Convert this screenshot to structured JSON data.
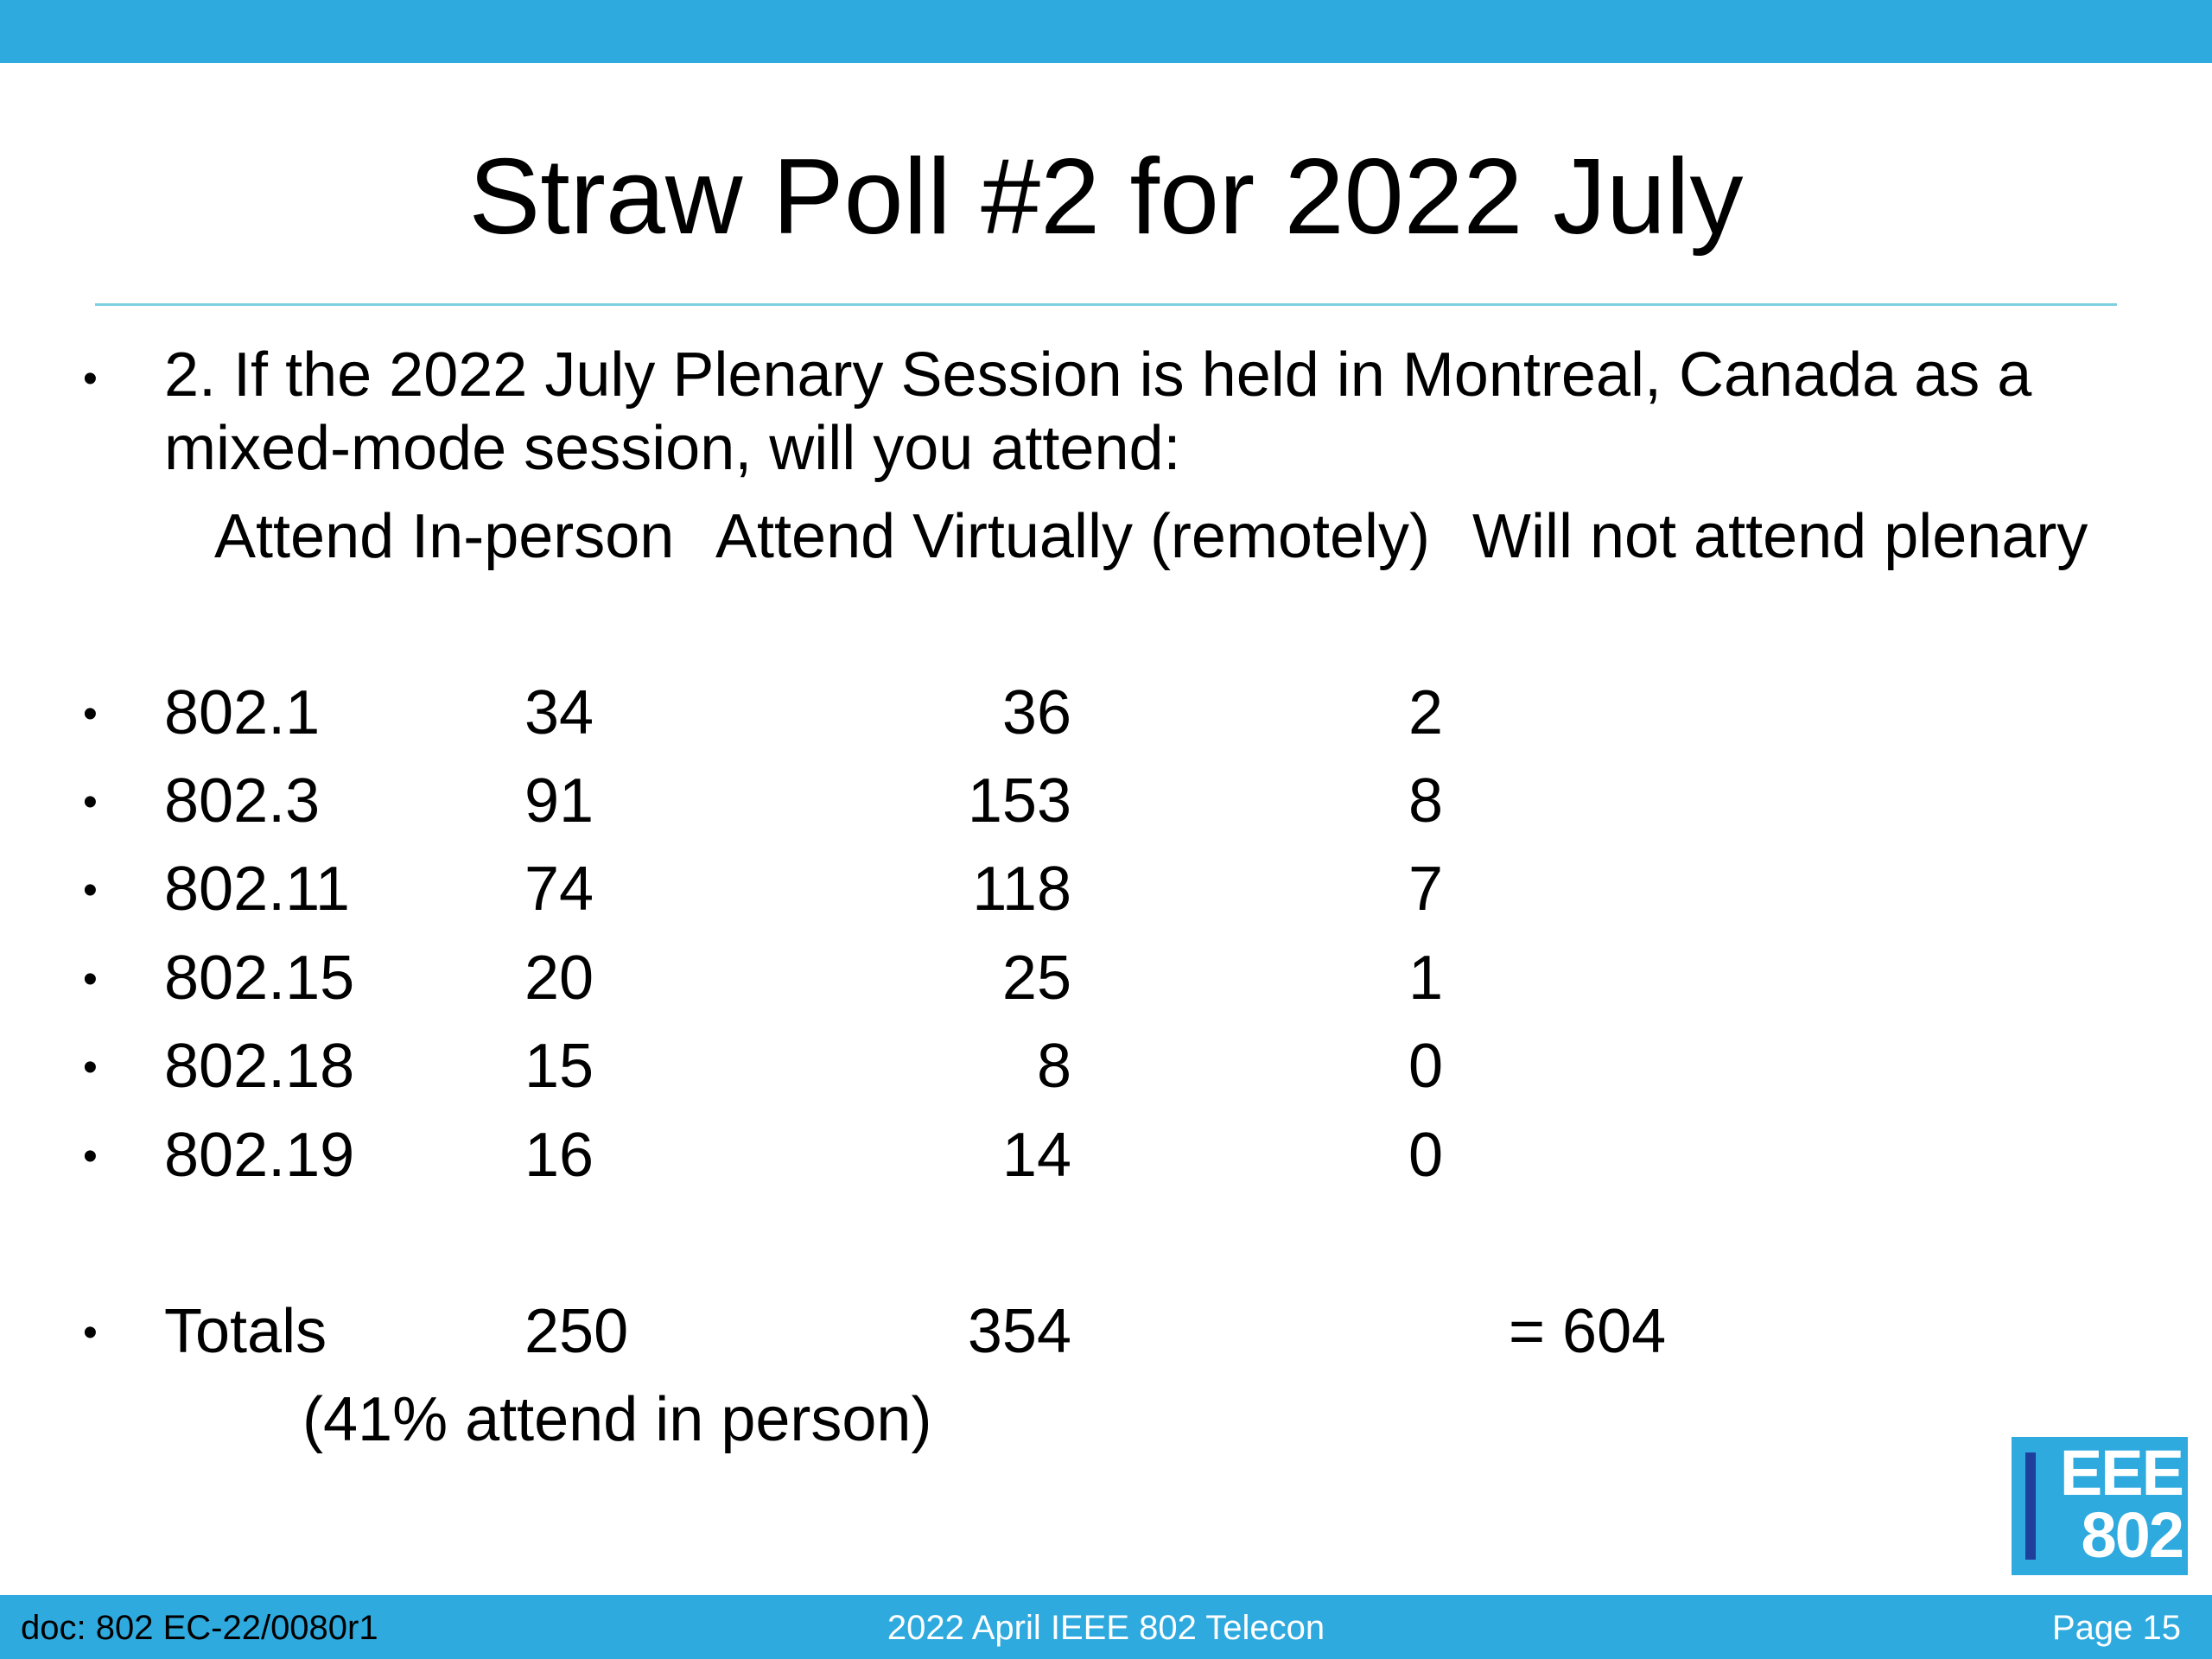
{
  "slide": {
    "title": "Straw Poll #2 for 2022 July",
    "question_line1": "2. If the 2022 July Plenary Session is held in Montreal, Canada as a",
    "question_line2": "mixed-mode session, will you attend:",
    "bullet_glyph": "•"
  },
  "table": {
    "headers": [
      "Attend In-person",
      "Attend Virtually (remotely)",
      "Will not attend plenary"
    ],
    "rows": [
      {
        "group": "802.1",
        "in_person": "34",
        "virtual": "36",
        "not_attend": "2"
      },
      {
        "group": "802.3",
        "in_person": "91",
        "virtual": "153",
        "not_attend": "8"
      },
      {
        "group": "802.11",
        "in_person": "74",
        "virtual": "118",
        "not_attend": "7"
      },
      {
        "group": "802.15",
        "in_person": "20",
        "virtual": "25",
        "not_attend": "1"
      },
      {
        "group": "802.18",
        "in_person": "15",
        "virtual": "8",
        "not_attend": "0"
      },
      {
        "group": "802.19",
        "in_person": "16",
        "virtual": "14",
        "not_attend": "0"
      }
    ],
    "totals": {
      "label": "Totals",
      "in_person": "250",
      "virtual": "354",
      "grand_total": "= 604"
    },
    "note": "(41% attend in person)"
  },
  "footer": {
    "doc": "doc: 802 EC-22/0080r1",
    "event": "2022 April IEEE 802 Telecon",
    "page": "Page 15"
  },
  "logo": {
    "line1": "EEE",
    "line2": "802"
  },
  "colors": {
    "accent": "#2eaadf",
    "rule": "#7fcfe0",
    "logo_bar": "#1f3f9c"
  }
}
